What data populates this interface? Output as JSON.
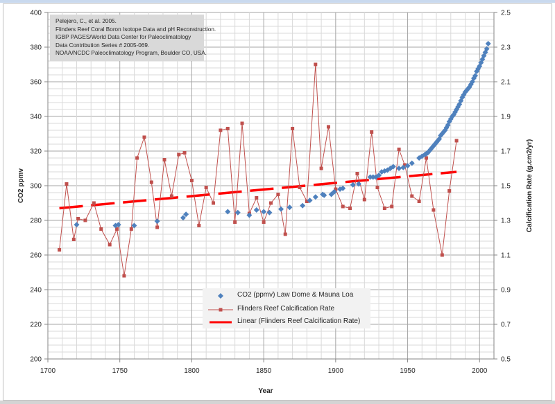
{
  "chart_data": {
    "type": "scatter",
    "title": "",
    "xlabel": "Year",
    "ylabel": "CO2 ppmv",
    "y2label": "Calcification Rate (g.cm2/yr)",
    "xlim": [
      1700,
      2010
    ],
    "ylim": [
      200,
      400
    ],
    "y2lim": [
      0.5,
      2.5
    ],
    "grid": true,
    "legend_position": "bottom-center",
    "x_ticks": [
      "1700",
      "1750",
      "1800",
      "1850",
      "1900",
      "1950",
      "2000"
    ],
    "y_ticks": [
      "200",
      "220",
      "240",
      "260",
      "280",
      "300",
      "320",
      "340",
      "360",
      "380",
      "400"
    ],
    "y2_ticks": [
      "0.5",
      "0.7",
      "0.9",
      "1.1",
      "1.3",
      "1.5",
      "1.7",
      "1.9",
      "2.1",
      "2.3",
      "2.5"
    ],
    "annotation": [
      "Pelejero, C., et al.  2005.",
      "Flinders Reef Coral Boron Isotope Data and pH Reconstruction.",
      "IGBP PAGES/World Data Center for Paleoclimatology",
      "Data Contribution Series # 2005-069.",
      "NOAA/NCDC Paleoclimatology Program, Boulder CO, USA."
    ],
    "series": [
      {
        "name": "CO2 (ppmv) Law Dome & Mauna Loa",
        "axis": "left",
        "style": "markers",
        "color": "#4f81bd",
        "x": [
          1720,
          1747,
          1749,
          1760,
          1776,
          1794,
          1796,
          1825,
          1832,
          1840,
          1845,
          1850,
          1854,
          1862,
          1868,
          1877,
          1882,
          1886,
          1891,
          1892,
          1897,
          1899,
          1903,
          1905,
          1912,
          1916,
          1924,
          1926,
          1928,
          1930,
          1932,
          1934,
          1936,
          1938,
          1940,
          1944,
          1947,
          1950,
          1953,
          1958,
          1960,
          1962,
          1963,
          1964,
          1965,
          1966,
          1967,
          1968,
          1969,
          1970,
          1971,
          1972,
          1973,
          1974,
          1975,
          1976,
          1977,
          1978,
          1979,
          1980,
          1981,
          1982,
          1983,
          1984,
          1985,
          1986,
          1987,
          1988,
          1989,
          1990,
          1991,
          1992,
          1993,
          1994,
          1995,
          1996,
          1997,
          1998,
          1999,
          2000,
          2001,
          2002,
          2003,
          2004,
          2005,
          2006
        ],
        "values": [
          277.5,
          277,
          277.5,
          277,
          279.5,
          281.5,
          283.5,
          285,
          284.5,
          283,
          286,
          285,
          284.5,
          286.5,
          287.5,
          288.5,
          291.5,
          293.5,
          295,
          294.5,
          295,
          296.5,
          298,
          298.5,
          300.5,
          301,
          305,
          305,
          305,
          306,
          308,
          308.5,
          309,
          310,
          311,
          310,
          310.5,
          311.5,
          313,
          316,
          317,
          318,
          318.5,
          319,
          320,
          321,
          322,
          323,
          324,
          325,
          326,
          327,
          329,
          330,
          331,
          332,
          333.5,
          335,
          337,
          338.5,
          340,
          341,
          342.5,
          344,
          345.5,
          347,
          349,
          351,
          352.5,
          354,
          355,
          356,
          357,
          358.5,
          360,
          362,
          363.5,
          366,
          367.5,
          369,
          371,
          373,
          375,
          377,
          379,
          382
        ]
      },
      {
        "name": "Flinders Reef Calcification Rate",
        "axis": "right",
        "style": "line-markers",
        "color": "#c0504d",
        "x": [
          1708,
          1713,
          1718,
          1721,
          1726,
          1732,
          1737,
          1743,
          1748,
          1753,
          1758,
          1762,
          1767,
          1772,
          1776,
          1781,
          1786,
          1791,
          1795,
          1800,
          1805,
          1810,
          1815,
          1820,
          1825,
          1830,
          1835,
          1840,
          1845,
          1850,
          1855,
          1860,
          1865,
          1870,
          1875,
          1880,
          1886,
          1890,
          1895,
          1900,
          1905,
          1910,
          1915,
          1920,
          1925,
          1929,
          1934,
          1939,
          1944,
          1948,
          1953,
          1958,
          1963,
          1968,
          1974,
          1979,
          1984
        ],
        "values": [
          1.13,
          1.51,
          1.19,
          1.31,
          1.3,
          1.4,
          1.25,
          1.16,
          1.25,
          0.98,
          1.25,
          1.66,
          1.78,
          1.52,
          1.26,
          1.65,
          1.44,
          1.68,
          1.69,
          1.53,
          1.27,
          1.49,
          1.4,
          1.82,
          1.83,
          1.29,
          1.86,
          1.34,
          1.43,
          1.29,
          1.4,
          1.45,
          1.22,
          1.83,
          1.49,
          1.41,
          2.2,
          1.6,
          1.84,
          1.48,
          1.38,
          1.37,
          1.57,
          1.42,
          1.81,
          1.49,
          1.37,
          1.38,
          1.71,
          1.62,
          1.44,
          1.41,
          1.66,
          1.36,
          1.1,
          1.47,
          1.76
        ]
      },
      {
        "name": "Linear (Flinders Reef Calcification Rate)",
        "axis": "right",
        "style": "dashed-trendline",
        "color": "#ff0000",
        "x": [
          1708,
          1984
        ],
        "values": [
          1.37,
          1.58
        ]
      }
    ]
  }
}
